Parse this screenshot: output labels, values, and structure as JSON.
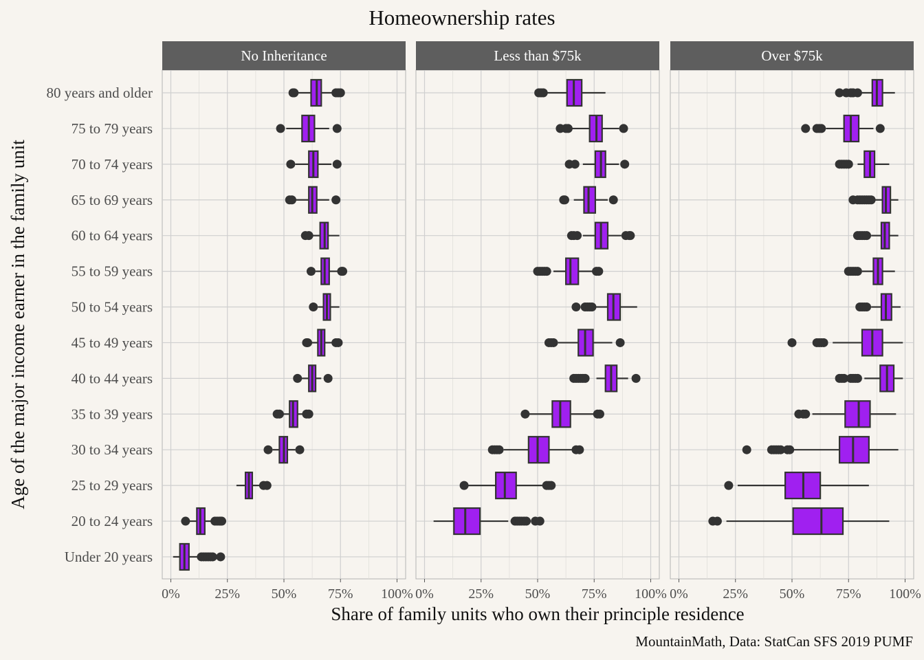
{
  "chart_data": {
    "type": "boxplot",
    "title": "Homeownership rates",
    "xlabel": "Share of family units who own their principle residence",
    "ylabel": "Age of the major income earner in the family unit",
    "caption": "MountainMath, Data: StatCan SFS 2019 PUMF",
    "xlim": [
      0,
      1
    ],
    "x_ticks": [
      "0%",
      "25%",
      "50%",
      "75%",
      "100%"
    ],
    "grid": true,
    "categories": [
      "80 years and older",
      "75 to 79 years",
      "70 to 74 years",
      "65 to 69 years",
      "60 to 64 years",
      "55 to 59 years",
      "50 to 54 years",
      "45 to 49 years",
      "40 to 44 years",
      "35 to 39 years",
      "30 to 34 years",
      "25 to 29 years",
      "20 to 24 years",
      "Under 20 years"
    ],
    "colors": {
      "box_fill": "#a020f0",
      "box_line": "#333333",
      "strip_bg": "#5e5e5e",
      "panel_bg": "#f7f4ef",
      "grid": "#cfcfcf"
    },
    "panels": [
      {
        "name": "No Inheritance",
        "boxes": [
          {
            "category": "80 years and older",
            "whisker_low": 0.56,
            "q1": 0.62,
            "median": 0.645,
            "q3": 0.665,
            "whisker_high": 0.72,
            "outliers": [
              0.54,
              0.545,
              0.73,
              0.74,
              0.75
            ]
          },
          {
            "category": "75 to 79 years",
            "whisker_low": 0.51,
            "q1": 0.58,
            "median": 0.61,
            "q3": 0.635,
            "whisker_high": 0.7,
            "outliers": [
              0.485,
              0.735
            ]
          },
          {
            "category": "70 to 74 years",
            "whisker_low": 0.55,
            "q1": 0.61,
            "median": 0.63,
            "q3": 0.65,
            "whisker_high": 0.71,
            "outliers": [
              0.53,
              0.735
            ]
          },
          {
            "category": "65 to 69 years",
            "whisker_low": 0.55,
            "q1": 0.61,
            "median": 0.625,
            "q3": 0.645,
            "whisker_high": 0.7,
            "outliers": [
              0.525,
              0.535,
              0.73
            ]
          },
          {
            "category": "60 to 64 years",
            "whisker_low": 0.62,
            "q1": 0.66,
            "median": 0.68,
            "q3": 0.695,
            "whisker_high": 0.745,
            "outliers": [
              0.595,
              0.61
            ]
          },
          {
            "category": "55 to 59 years",
            "whisker_low": 0.64,
            "q1": 0.665,
            "median": 0.68,
            "q3": 0.7,
            "whisker_high": 0.74,
            "outliers": [
              0.62,
              0.755,
              0.76
            ]
          },
          {
            "category": "50 to 54 years",
            "whisker_low": 0.65,
            "q1": 0.675,
            "median": 0.69,
            "q3": 0.705,
            "whisker_high": 0.745,
            "outliers": [
              0.63
            ]
          },
          {
            "category": "45 to 49 years",
            "whisker_low": 0.62,
            "q1": 0.65,
            "median": 0.665,
            "q3": 0.68,
            "whisker_high": 0.72,
            "outliers": [
              0.6,
              0.605,
              0.73,
              0.74
            ]
          },
          {
            "category": "40 to 44 years",
            "whisker_low": 0.575,
            "q1": 0.61,
            "median": 0.625,
            "q3": 0.64,
            "whisker_high": 0.665,
            "outliers": [
              0.56,
              0.695
            ]
          },
          {
            "category": "35 to 39 years",
            "whisker_low": 0.495,
            "q1": 0.525,
            "median": 0.54,
            "q3": 0.56,
            "whisker_high": 0.59,
            "outliers": [
              0.47,
              0.48,
              0.6,
              0.61
            ]
          },
          {
            "category": "30 to 34 years",
            "whisker_low": 0.45,
            "q1": 0.48,
            "median": 0.5,
            "q3": 0.515,
            "whisker_high": 0.55,
            "outliers": [
              0.43,
              0.57
            ]
          },
          {
            "category": "25 to 29 years",
            "whisker_low": 0.29,
            "q1": 0.33,
            "median": 0.345,
            "q3": 0.36,
            "whisker_high": 0.4,
            "outliers": [
              0.41,
              0.425
            ]
          },
          {
            "category": "20 to 24 years",
            "whisker_low": 0.08,
            "q1": 0.115,
            "median": 0.13,
            "q3": 0.15,
            "whisker_high": 0.185,
            "outliers": [
              0.065,
              0.195,
              0.205,
              0.215,
              0.22,
              0.225
            ]
          },
          {
            "category": "Under 20 years",
            "whisker_low": 0.01,
            "q1": 0.04,
            "median": 0.06,
            "q3": 0.08,
            "whisker_high": 0.12,
            "outliers": [
              0.135,
              0.145,
              0.155,
              0.165,
              0.175,
              0.185,
              0.22
            ]
          }
        ]
      },
      {
        "name": "Less than $75k",
        "boxes": [
          {
            "category": "80 years and older",
            "whisker_low": 0.54,
            "q1": 0.63,
            "median": 0.66,
            "q3": 0.695,
            "whisker_high": 0.8,
            "outliers": [
              0.505,
              0.515,
              0.525
            ]
          },
          {
            "category": "75 to 79 years",
            "whisker_low": 0.65,
            "q1": 0.73,
            "median": 0.76,
            "q3": 0.785,
            "whisker_high": 0.86,
            "outliers": [
              0.6,
              0.625,
              0.635,
              0.88
            ]
          },
          {
            "category": "70 to 74 years",
            "whisker_low": 0.7,
            "q1": 0.755,
            "median": 0.78,
            "q3": 0.8,
            "whisker_high": 0.86,
            "outliers": [
              0.64,
              0.665,
              0.885
            ]
          },
          {
            "category": "65 to 69 years",
            "whisker_low": 0.66,
            "q1": 0.705,
            "median": 0.725,
            "q3": 0.755,
            "whisker_high": 0.81,
            "outliers": [
              0.615,
              0.62,
              0.835
            ]
          },
          {
            "category": "60 to 64 years",
            "whisker_low": 0.7,
            "q1": 0.755,
            "median": 0.78,
            "q3": 0.81,
            "whisker_high": 0.87,
            "outliers": [
              0.65,
              0.66,
              0.675,
              0.89,
              0.905,
              0.91
            ]
          },
          {
            "category": "55 to 59 years",
            "whisker_low": 0.57,
            "q1": 0.625,
            "median": 0.645,
            "q3": 0.68,
            "whisker_high": 0.75,
            "outliers": [
              0.5,
              0.51,
              0.52,
              0.53,
              0.54,
              0.76,
              0.77
            ]
          },
          {
            "category": "50 to 54 years",
            "whisker_low": 0.75,
            "q1": 0.81,
            "median": 0.835,
            "q3": 0.865,
            "whisker_high": 0.94,
            "outliers": [
              0.67,
              0.71,
              0.72,
              0.73,
              0.74
            ]
          },
          {
            "category": "45 to 49 years",
            "whisker_low": 0.59,
            "q1": 0.68,
            "median": 0.71,
            "q3": 0.745,
            "whisker_high": 0.83,
            "outliers": [
              0.55,
              0.56,
              0.57,
              0.865
            ]
          },
          {
            "category": "40 to 44 years",
            "whisker_low": 0.76,
            "q1": 0.8,
            "median": 0.825,
            "q3": 0.85,
            "whisker_high": 0.9,
            "outliers": [
              0.66,
              0.67,
              0.68,
              0.69,
              0.7,
              0.71,
              0.935
            ]
          },
          {
            "category": "35 to 39 years",
            "whisker_low": 0.46,
            "q1": 0.565,
            "median": 0.6,
            "q3": 0.645,
            "whisker_high": 0.755,
            "outliers": [
              0.445,
              0.765,
              0.775
            ]
          },
          {
            "category": "30 to 34 years",
            "whisker_low": 0.35,
            "q1": 0.46,
            "median": 0.5,
            "q3": 0.55,
            "whisker_high": 0.66,
            "outliers": [
              0.3,
              0.31,
              0.32,
              0.33,
              0.67,
              0.685
            ]
          },
          {
            "category": "25 to 29 years",
            "whisker_low": 0.19,
            "q1": 0.315,
            "median": 0.355,
            "q3": 0.405,
            "whisker_high": 0.53,
            "outliers": [
              0.175,
              0.54,
              0.55,
              0.56
            ]
          },
          {
            "category": "20 to 24 years",
            "whisker_low": 0.04,
            "q1": 0.13,
            "median": 0.18,
            "q3": 0.245,
            "whisker_high": 0.37,
            "outliers": [
              0.4,
              0.41,
              0.42,
              0.43,
              0.44,
              0.45,
              0.49,
              0.51
            ]
          }
        ]
      },
      {
        "name": "Over $75k",
        "boxes": [
          {
            "category": "80 years and older",
            "whisker_low": 0.8,
            "q1": 0.855,
            "median": 0.875,
            "q3": 0.9,
            "whisker_high": 0.955,
            "outliers": [
              0.71,
              0.74,
              0.76,
              0.77,
              0.79
            ]
          },
          {
            "category": "75 to 79 years",
            "whisker_low": 0.65,
            "q1": 0.73,
            "median": 0.76,
            "q3": 0.795,
            "whisker_high": 0.86,
            "outliers": [
              0.56,
              0.61,
              0.62,
              0.63,
              0.89
            ]
          },
          {
            "category": "70 to 74 years",
            "whisker_low": 0.79,
            "q1": 0.82,
            "median": 0.845,
            "q3": 0.865,
            "whisker_high": 0.93,
            "outliers": [
              0.71,
              0.72,
              0.73,
              0.74,
              0.75
            ]
          },
          {
            "category": "65 to 69 years",
            "whisker_low": 0.86,
            "q1": 0.9,
            "median": 0.915,
            "q3": 0.935,
            "whisker_high": 0.97,
            "outliers": [
              0.77,
              0.79,
              0.8,
              0.81,
              0.82,
              0.83,
              0.84,
              0.85
            ]
          },
          {
            "category": "60 to 64 years",
            "whisker_low": 0.85,
            "q1": 0.895,
            "median": 0.91,
            "q3": 0.93,
            "whisker_high": 0.97,
            "outliers": [
              0.79,
              0.8,
              0.81,
              0.82,
              0.83
            ]
          },
          {
            "category": "55 to 59 years",
            "whisker_low": 0.81,
            "q1": 0.86,
            "median": 0.88,
            "q3": 0.9,
            "whisker_high": 0.955,
            "outliers": [
              0.75,
              0.76,
              0.77,
              0.78,
              0.79
            ]
          },
          {
            "category": "50 to 54 years",
            "whisker_low": 0.85,
            "q1": 0.895,
            "median": 0.915,
            "q3": 0.94,
            "whisker_high": 0.98,
            "outliers": [
              0.8,
              0.81,
              0.82,
              0.83
            ]
          },
          {
            "category": "45 to 49 years",
            "whisker_low": 0.68,
            "q1": 0.81,
            "median": 0.855,
            "q3": 0.9,
            "whisker_high": 0.99,
            "outliers": [
              0.5,
              0.61,
              0.62,
              0.63,
              0.64
            ]
          },
          {
            "category": "40 to 44 years",
            "whisker_low": 0.82,
            "q1": 0.89,
            "median": 0.92,
            "q3": 0.95,
            "whisker_high": 0.99,
            "outliers": [
              0.71,
              0.72,
              0.73,
              0.76,
              0.77,
              0.78,
              0.79
            ]
          },
          {
            "category": "35 to 39 years",
            "whisker_low": 0.59,
            "q1": 0.735,
            "median": 0.795,
            "q3": 0.845,
            "whisker_high": 0.96,
            "outliers": [
              0.53,
              0.55,
              0.56
            ]
          },
          {
            "category": "30 to 34 years",
            "whisker_low": 0.49,
            "q1": 0.71,
            "median": 0.77,
            "q3": 0.84,
            "whisker_high": 0.97,
            "outliers": [
              0.3,
              0.41,
              0.42,
              0.43,
              0.44,
              0.45,
              0.48,
              0.49
            ]
          },
          {
            "category": "25 to 29 years",
            "whisker_low": 0.26,
            "q1": 0.47,
            "median": 0.55,
            "q3": 0.625,
            "whisker_high": 0.84,
            "outliers": [
              0.22
            ]
          },
          {
            "category": "20 to 24 years",
            "whisker_low": 0.21,
            "q1": 0.505,
            "median": 0.63,
            "q3": 0.725,
            "whisker_high": 0.93,
            "outliers": [
              0.15,
              0.17
            ]
          }
        ]
      }
    ]
  }
}
